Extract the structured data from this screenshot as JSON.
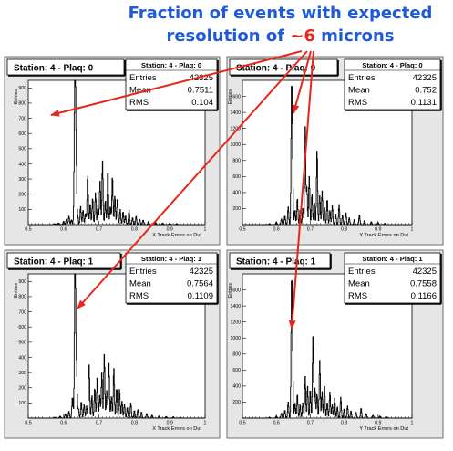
{
  "annotation": {
    "line1": "Fraction of events with expected",
    "line2_pre": "resolution of ",
    "line2_hl": "~6",
    "line2_post": " microns",
    "text_color": "#1e5bd8",
    "highlight_color": "#e8261c",
    "arrow_color": "#e8261c"
  },
  "panel_style": {
    "canvas_background": "#e6e6e6",
    "frame_background": "#ffffff",
    "histogram_color": "#000000",
    "stats_labels": [
      "Entries",
      "Mean",
      "RMS"
    ]
  },
  "chart_data": [
    {
      "type": "line",
      "title": "Station: 4 - Plaq: 0",
      "stats_title": "Station: 4 - Plaq: 0",
      "stats": {
        "Entries": "42325",
        "Mean": "0.7511",
        "RMS": "0.104"
      },
      "xlabel": "X Track Errors on Dut",
      "ylabel": "Entries",
      "xlim": [
        0.5,
        1.0
      ],
      "ylim": [
        0,
        950
      ],
      "xticks": [
        "0.5",
        "0.6",
        "0.7",
        "0.8",
        "0.9",
        "1"
      ],
      "yticks": [
        "100",
        "200",
        "300",
        "400",
        "500",
        "600",
        "700",
        "800",
        "900"
      ],
      "peaks": [
        [
          0.575,
          6
        ],
        [
          0.585,
          10
        ],
        [
          0.6,
          22
        ],
        [
          0.608,
          35
        ],
        [
          0.615,
          55
        ],
        [
          0.622,
          30
        ],
        [
          0.63,
          180
        ],
        [
          0.632,
          900
        ],
        [
          0.634,
          360
        ],
        [
          0.636,
          240
        ],
        [
          0.64,
          50
        ],
        [
          0.648,
          120
        ],
        [
          0.655,
          95
        ],
        [
          0.662,
          75
        ],
        [
          0.668,
          330
        ],
        [
          0.675,
          140
        ],
        [
          0.682,
          175
        ],
        [
          0.69,
          210
        ],
        [
          0.697,
          130
        ],
        [
          0.703,
          285
        ],
        [
          0.71,
          420
        ],
        [
          0.718,
          160
        ],
        [
          0.725,
          360
        ],
        [
          0.732,
          120
        ],
        [
          0.738,
          320
        ],
        [
          0.745,
          190
        ],
        [
          0.752,
          165
        ],
        [
          0.76,
          100
        ],
        [
          0.768,
          85
        ],
        [
          0.775,
          60
        ],
        [
          0.785,
          95
        ],
        [
          0.795,
          45
        ],
        [
          0.805,
          55
        ],
        [
          0.815,
          35
        ],
        [
          0.825,
          30
        ],
        [
          0.84,
          20
        ],
        [
          0.86,
          14
        ],
        [
          0.88,
          10
        ],
        [
          0.9,
          8
        ],
        [
          0.92,
          6
        ]
      ]
    },
    {
      "type": "line",
      "title": "Station: 4 - Plaq: 0",
      "stats_title": "Station: 4 - Plaq: 0",
      "stats": {
        "Entries": "42325",
        "Mean": "0.752",
        "RMS": "0.1131"
      },
      "xlabel": "Y Track Errors on Dut",
      "ylabel": "Entries",
      "xlim": [
        0.5,
        1.0
      ],
      "ylim": [
        0,
        1800
      ],
      "xticks": [
        "0.5",
        "0.6",
        "0.7",
        "0.8",
        "0.9",
        "1"
      ],
      "yticks": [
        "200",
        "400",
        "600",
        "800",
        "1000",
        "1200",
        "1400",
        "1600"
      ],
      "peaks": [
        [
          0.58,
          10
        ],
        [
          0.6,
          30
        ],
        [
          0.615,
          70
        ],
        [
          0.625,
          110
        ],
        [
          0.635,
          220
        ],
        [
          0.645,
          1700
        ],
        [
          0.648,
          600
        ],
        [
          0.655,
          180
        ],
        [
          0.662,
          330
        ],
        [
          0.67,
          180
        ],
        [
          0.678,
          200
        ],
        [
          0.685,
          1220
        ],
        [
          0.69,
          460
        ],
        [
          0.697,
          600
        ],
        [
          0.705,
          390
        ],
        [
          0.712,
          280
        ],
        [
          0.72,
          940
        ],
        [
          0.728,
          360
        ],
        [
          0.735,
          420
        ],
        [
          0.742,
          210
        ],
        [
          0.75,
          320
        ],
        [
          0.758,
          175
        ],
        [
          0.765,
          240
        ],
        [
          0.775,
          140
        ],
        [
          0.785,
          250
        ],
        [
          0.795,
          120
        ],
        [
          0.805,
          150
        ],
        [
          0.815,
          85
        ],
        [
          0.83,
          65
        ],
        [
          0.845,
          120
        ],
        [
          0.86,
          50
        ],
        [
          0.88,
          35
        ],
        [
          0.9,
          25
        ],
        [
          0.92,
          15
        ]
      ]
    },
    {
      "type": "line",
      "title": "Station: 4 - Plaq: 1",
      "stats_title": "Station: 4 - Plaq: 1",
      "stats": {
        "Entries": "42325",
        "Mean": "0.7564",
        "RMS": "0.1109"
      },
      "xlabel": "X Track Errors on Dut",
      "ylabel": "Entries",
      "xlim": [
        0.5,
        1.0
      ],
      "ylim": [
        0,
        950
      ],
      "xticks": [
        "0.5",
        "0.6",
        "0.7",
        "0.8",
        "0.9",
        "1"
      ],
      "yticks": [
        "100",
        "200",
        "300",
        "400",
        "500",
        "600",
        "700",
        "800",
        "900"
      ],
      "peaks": [
        [
          0.575,
          5
        ],
        [
          0.59,
          12
        ],
        [
          0.605,
          28
        ],
        [
          0.615,
          45
        ],
        [
          0.625,
          140
        ],
        [
          0.632,
          900
        ],
        [
          0.634,
          380
        ],
        [
          0.637,
          250
        ],
        [
          0.642,
          60
        ],
        [
          0.65,
          110
        ],
        [
          0.658,
          90
        ],
        [
          0.665,
          80
        ],
        [
          0.672,
          350
        ],
        [
          0.68,
          150
        ],
        [
          0.688,
          200
        ],
        [
          0.695,
          270
        ],
        [
          0.702,
          150
        ],
        [
          0.708,
          300
        ],
        [
          0.715,
          420
        ],
        [
          0.722,
          180
        ],
        [
          0.728,
          360
        ],
        [
          0.735,
          140
        ],
        [
          0.742,
          330
        ],
        [
          0.75,
          200
        ],
        [
          0.758,
          190
        ],
        [
          0.765,
          110
        ],
        [
          0.772,
          90
        ],
        [
          0.78,
          70
        ],
        [
          0.79,
          100
        ],
        [
          0.8,
          50
        ],
        [
          0.81,
          55
        ],
        [
          0.82,
          40
        ],
        [
          0.835,
          30
        ],
        [
          0.85,
          20
        ],
        [
          0.87,
          14
        ],
        [
          0.89,
          10
        ],
        [
          0.91,
          8
        ],
        [
          0.93,
          5
        ]
      ]
    },
    {
      "type": "line",
      "title": "Station: 4 - Plaq: 1",
      "stats_title": "Station: 4 - Plaq: 1",
      "stats": {
        "Entries": "42325",
        "Mean": "0.7558",
        "RMS": "0.1166"
      },
      "xlabel": "Y Track Errors on Dut",
      "ylabel": "Entries",
      "xlim": [
        0.5,
        1.0
      ],
      "ylim": [
        0,
        1800
      ],
      "xticks": [
        "0.5",
        "0.6",
        "0.7",
        "0.8",
        "0.9",
        "1"
      ],
      "yticks": [
        "200",
        "400",
        "600",
        "800",
        "1000",
        "1200",
        "1400",
        "1600"
      ],
      "peaks": [
        [
          0.58,
          10
        ],
        [
          0.6,
          25
        ],
        [
          0.615,
          60
        ],
        [
          0.625,
          100
        ],
        [
          0.635,
          200
        ],
        [
          0.645,
          1680
        ],
        [
          0.648,
          620
        ],
        [
          0.655,
          190
        ],
        [
          0.662,
          300
        ],
        [
          0.67,
          170
        ],
        [
          0.678,
          190
        ],
        [
          0.685,
          520
        ],
        [
          0.692,
          400
        ],
        [
          0.7,
          360
        ],
        [
          0.708,
          1030
        ],
        [
          0.714,
          380
        ],
        [
          0.72,
          300
        ],
        [
          0.728,
          720
        ],
        [
          0.735,
          330
        ],
        [
          0.742,
          400
        ],
        [
          0.75,
          200
        ],
        [
          0.758,
          330
        ],
        [
          0.765,
          170
        ],
        [
          0.772,
          250
        ],
        [
          0.78,
          140
        ],
        [
          0.79,
          260
        ],
        [
          0.8,
          120
        ],
        [
          0.81,
          150
        ],
        [
          0.82,
          90
        ],
        [
          0.835,
          70
        ],
        [
          0.85,
          125
        ],
        [
          0.865,
          55
        ],
        [
          0.885,
          35
        ],
        [
          0.905,
          25
        ],
        [
          0.925,
          15
        ]
      ]
    }
  ]
}
